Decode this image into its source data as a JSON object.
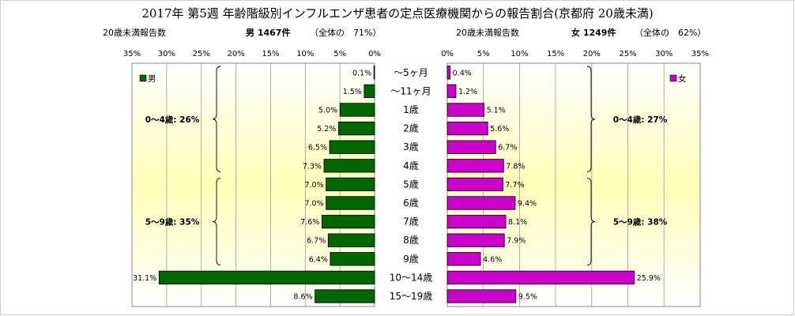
{
  "chart_data": {
    "type": "bar",
    "orientation": "horizontal",
    "layout": "population-pyramid",
    "title": "2017年 第5週 年齢階級別インフルエンザ患者の定点医療機関からの報告割合(京都府 20歳未満)",
    "categories": [
      "〜5ヶ月",
      "〜11ヶ月",
      "1歳",
      "2歳",
      "3歳",
      "4歳",
      "5歳",
      "6歳",
      "7歳",
      "8歳",
      "9歳",
      "10〜14歳",
      "15〜19歳"
    ],
    "series": [
      {
        "name": "男",
        "color": "#006600",
        "values": [
          0.1,
          1.5,
          5.0,
          5.2,
          6.5,
          7.3,
          7.0,
          7.0,
          7.6,
          6.7,
          6.4,
          31.1,
          8.6
        ],
        "labels": [
          "0.1%",
          "1.5%",
          "5.0%",
          "5.2%",
          "6.5%",
          "7.3%",
          "7.0%",
          "7.0%",
          "7.6%",
          "6.7%",
          "6.4%",
          "31.1%",
          "8.6%"
        ],
        "header_left": "20歳未満報告数",
        "header_count": "男 1467件",
        "header_share": "（全体の　71%）",
        "groups": [
          {
            "label": "0〜4歳: 26%",
            "from": 0,
            "to": 5
          },
          {
            "label": "5〜9歳: 35%",
            "from": 6,
            "to": 10
          }
        ]
      },
      {
        "name": "女",
        "color": "#cc00cc",
        "values": [
          0.4,
          1.2,
          5.1,
          5.6,
          6.7,
          7.8,
          7.7,
          9.4,
          8.1,
          7.9,
          4.6,
          25.9,
          9.5
        ],
        "labels": [
          "0.4%",
          "1.2%",
          "5.1%",
          "5.6%",
          "6.7%",
          "7.8%",
          "7.7%",
          "9.4%",
          "8.1%",
          "7.9%",
          "4.6%",
          "25.9%",
          "9.5%"
        ],
        "header_left": "20歳未満報告数",
        "header_count": "女 1249件",
        "header_share": "（全体の　62%）",
        "groups": [
          {
            "label": "0〜4歳: 27%",
            "from": 0,
            "to": 5
          },
          {
            "label": "5〜9歳: 38%",
            "from": 6,
            "to": 10
          }
        ]
      }
    ],
    "xlim": [
      0,
      35
    ],
    "ticks": [
      35,
      30,
      25,
      20,
      15,
      10,
      5,
      0
    ],
    "tick_labels_left": [
      "35%",
      "30%",
      "25%",
      "20%",
      "15%",
      "10%",
      "5%",
      "0%"
    ],
    "tick_labels_right": [
      "0%",
      "5%",
      "10%",
      "15%",
      "20%",
      "25%",
      "30%",
      "35%"
    ],
    "grid": true,
    "legend_left": "top-left",
    "legend_right": "top-right"
  }
}
